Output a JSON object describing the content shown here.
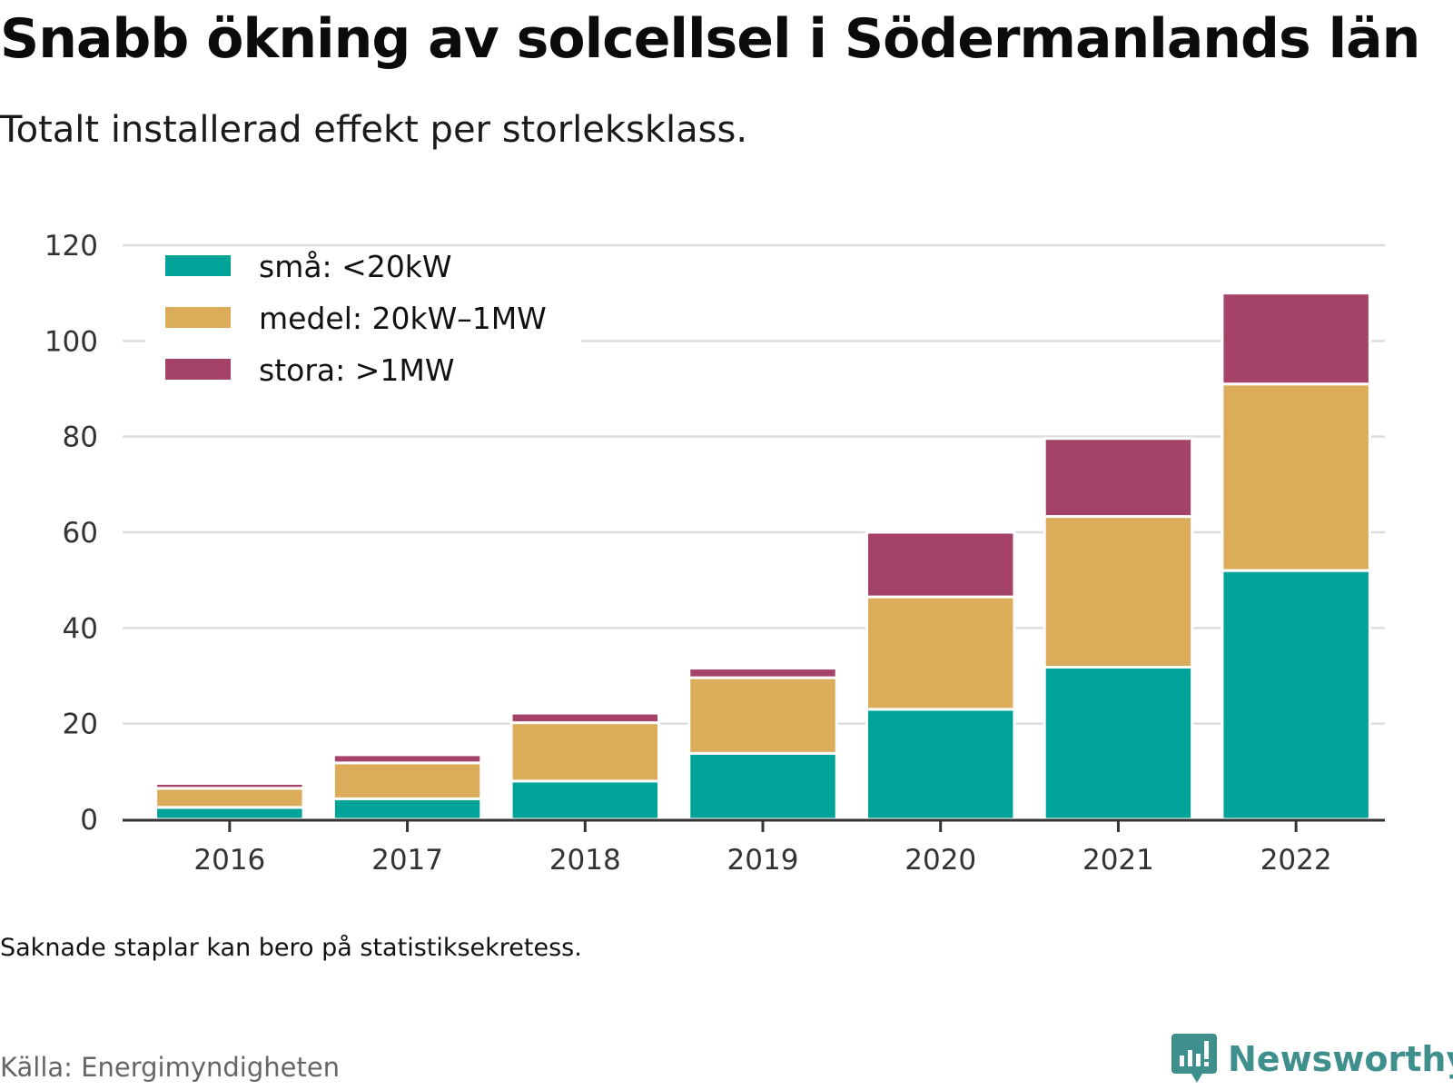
{
  "title": "Snabb ökning av solcellsel i Södermanlands län",
  "subtitle": "Totalt installerad effekt per storleksklass.",
  "note": "Saknade staplar kan bero på statistiksekretess.",
  "source": "Källa: Energimyndigheten",
  "brand": {
    "name": "Newsworthy",
    "icon": "newsworthy-logo-icon",
    "color": "#3f8f8c"
  },
  "chart_data": {
    "type": "bar",
    "stacked": true,
    "categories": [
      "2016",
      "2017",
      "2018",
      "2019",
      "2020",
      "2021",
      "2022"
    ],
    "series": [
      {
        "name": "små: <20kW",
        "color": "#00a398",
        "values": [
          2.5,
          4.3,
          8.0,
          13.8,
          23.0,
          31.8,
          52.0
        ]
      },
      {
        "name": "medel: 20kW–1MW",
        "color": "#dbad5a",
        "values": [
          4.0,
          7.5,
          12.2,
          15.8,
          23.5,
          31.5,
          39.0
        ]
      },
      {
        "name": "stora: >1MW",
        "color": "#a44267",
        "values": [
          1.0,
          1.7,
          2.0,
          2.0,
          13.5,
          16.3,
          19.0
        ]
      }
    ],
    "ylim": [
      0,
      120
    ],
    "yticks": [
      0,
      20,
      40,
      60,
      80,
      100,
      120
    ],
    "xlabel": "",
    "ylabel": "",
    "grid": true,
    "legend_position": "top-left"
  }
}
